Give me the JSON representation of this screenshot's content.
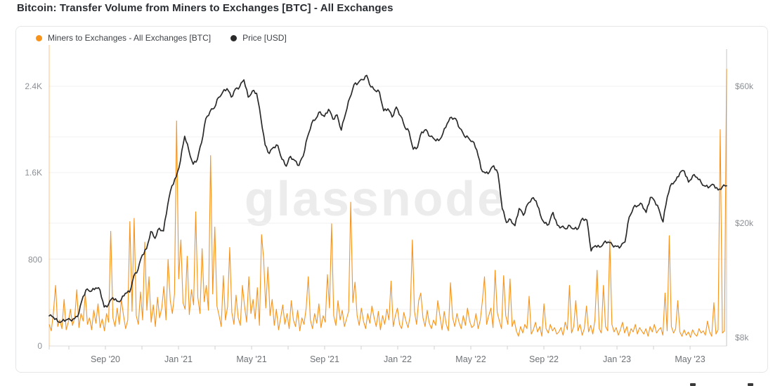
{
  "header": {
    "title": "Bitcoin: Transfer Volume from Miners to Exchanges [BTC] - All Exchanges"
  },
  "watermark": "glassnode",
  "legend": {
    "items": [
      {
        "label": "Miners to Exchanges - All Exchanges [BTC]",
        "color": "#f7931a"
      },
      {
        "label": "Price [USD]",
        "color": "#2a2a2a"
      }
    ]
  },
  "chart_data": {
    "type": "line",
    "title": "Bitcoin: Transfer Volume from Miners to Exchanges [BTC] - All Exchanges",
    "grid": "horizontal-faint",
    "legend_position": "top-left",
    "x_axis": {
      "ticks": [
        {
          "label": "Sep '20",
          "pos": 0.083
        },
        {
          "label": "Jan '21",
          "pos": 0.1909
        },
        {
          "label": "May '21",
          "pos": 0.2988
        },
        {
          "label": "Sep '21",
          "pos": 0.4066
        },
        {
          "label": "Jan '22",
          "pos": 0.5145
        },
        {
          "label": "May '22",
          "pos": 0.6224
        },
        {
          "label": "Sep '22",
          "pos": 0.7303
        },
        {
          "label": "Jan '23",
          "pos": 0.8382
        },
        {
          "label": "May '23",
          "pos": 0.9461
        }
      ]
    },
    "left_axis": {
      "unit": "BTC",
      "range": [
        0,
        2750
      ],
      "ticks": [
        {
          "label": "0",
          "value": 0
        },
        {
          "label": "800",
          "value": 800
        },
        {
          "label": "1.6K",
          "value": 1600
        },
        {
          "label": "2.4K",
          "value": 2400
        }
      ]
    },
    "right_axis": {
      "unit": "USD (thousands)",
      "scale": "log",
      "ticks": [
        {
          "label": "$60k",
          "value": 60
        },
        {
          "label": "$20k",
          "value": 20
        },
        {
          "label": "$8k",
          "value": 8
        }
      ],
      "grid_values": [
        60,
        40,
        30,
        20,
        15,
        10
      ]
    },
    "series": [
      {
        "name": "Miners to Exchanges - All Exchanges [BTC]",
        "axis": "left",
        "color": "#f7931a",
        "unit": "BTC",
        "values": [
          200,
          140,
          310,
          560,
          180,
          240,
          160,
          430,
          150,
          220,
          340,
          190,
          260,
          520,
          170,
          300,
          230,
          480,
          200,
          260,
          150,
          330,
          210,
          390,
          170,
          250,
          140,
          300,
          220,
          1060,
          260,
          180,
          350,
          200,
          430,
          280,
          160,
          240,
          1150,
          320,
          1180,
          280,
          200,
          500,
          240,
          960,
          330,
          640,
          220,
          380,
          180,
          450,
          260,
          350,
          550,
          240,
          800,
          420,
          300,
          480,
          2080,
          620,
          980,
          400,
          340,
          830,
          290,
          520,
          380,
          1240,
          450,
          300,
          900,
          410,
          560,
          330,
          1760,
          480,
          1100,
          370,
          280,
          180,
          650,
          240,
          360,
          910,
          310,
          200,
          470,
          260,
          190,
          560,
          370,
          220,
          640,
          300,
          430,
          250,
          540,
          190,
          1030,
          800,
          350,
          730,
          280,
          430,
          190,
          340,
          150,
          260,
          380,
          200,
          300,
          160,
          420,
          240,
          180,
          330,
          140,
          260,
          200,
          350,
          640,
          240,
          160,
          300,
          210,
          390,
          170,
          280,
          220,
          660,
          350,
          1130,
          280,
          190,
          420,
          240,
          330,
          180,
          250,
          320,
          1330,
          400,
          590,
          280,
          190,
          350,
          230,
          160,
          300,
          210,
          370,
          260,
          180,
          320,
          150,
          280,
          200,
          340,
          240,
          600,
          180,
          280,
          350,
          200,
          160,
          310,
          230,
          170,
          280,
          980,
          320,
          200,
          420,
          490,
          260,
          180,
          330,
          210,
          160,
          240,
          190,
          420,
          280,
          150,
          320,
          200,
          140,
          585,
          260,
          180,
          300,
          220,
          160,
          280,
          190,
          350,
          230,
          170,
          190,
          300,
          160,
          240,
          420,
          640,
          200,
          280,
          350,
          170,
          700,
          310,
          230,
          160,
          650,
          280,
          200,
          620,
          180,
          240,
          140,
          90,
          180,
          120,
          200,
          160,
          460,
          110,
          150,
          220,
          130,
          180,
          90,
          390,
          160,
          120,
          200,
          140,
          170,
          110,
          130,
          170,
          100,
          220,
          150,
          560,
          120,
          180,
          420,
          140,
          200,
          100,
          160,
          370,
          130,
          190,
          110,
          240,
          700,
          160,
          120,
          560,
          180,
          140,
          980,
          200,
          130,
          170,
          100,
          150,
          220,
          120,
          180,
          90,
          160,
          130,
          200,
          110,
          170,
          140,
          110,
          160,
          90,
          180,
          130,
          200,
          120,
          150,
          170,
          100,
          490,
          140,
          1020,
          180,
          120,
          160,
          420,
          130,
          90,
          150,
          100,
          130,
          80,
          150,
          110,
          90,
          160,
          120,
          140,
          100,
          230,
          130,
          90,
          400,
          110,
          150,
          2000,
          120,
          140,
          2560
        ]
      },
      {
        "name": "Price [USD]",
        "axis": "right",
        "color": "#2a2a2a",
        "unit": "USD (thousands)",
        "values": [
          9.5,
          9.4,
          9.1,
          9.1,
          9.2,
          9.2,
          9.3,
          9.7,
          11.1,
          11.8,
          11.6,
          11.9,
          11.7,
          10.2,
          10.4,
          11.0,
          10.7,
          10.8,
          11.4,
          11.5,
          13.1,
          13.8,
          15.5,
          16.3,
          18.7,
          17.7,
          19.2,
          18.8,
          23.2,
          27.0,
          29.0,
          33.0,
          40.2,
          35.8,
          32.1,
          33.4,
          38.2,
          46.3,
          49.0,
          50.4,
          54.9,
          57.3,
          58.9,
          55.0,
          58.8,
          59.8,
          63.2,
          55.0,
          57.8,
          56.7,
          46.4,
          37.5,
          35.0,
          36.8,
          37.3,
          33.4,
          31.6,
          34.2,
          33.1,
          31.8,
          34.3,
          39.9,
          44.6,
          46.3,
          48.9,
          47.1,
          49.9,
          46.1,
          47.7,
          42.2,
          48.2,
          54.7,
          60.9,
          61.7,
          63.3,
          65.5,
          59.7,
          58.0,
          57.3,
          49.3,
          50.1,
          46.9,
          50.8,
          47.3,
          43.2,
          41.7,
          36.2,
          36.8,
          41.6,
          42.4,
          40.1,
          39.2,
          38.8,
          41.1,
          44.5,
          46.8,
          46.3,
          42.8,
          40.4,
          39.7,
          38.6,
          36.0,
          31.0,
          29.9,
          30.2,
          31.7,
          29.8,
          22.5,
          20.1,
          20.6,
          19.6,
          22.5,
          21.3,
          23.3,
          24.4,
          23.9,
          21.4,
          20.0,
          19.8,
          21.8,
          19.7,
          19.4,
          19.1,
          19.6,
          19.1,
          19.2,
          20.8,
          20.5,
          16.0,
          16.7,
          16.5,
          17.1,
          17.2,
          16.8,
          16.6,
          16.6,
          17.2,
          21.0,
          22.7,
          23.0,
          23.3,
          21.8,
          24.6,
          23.9,
          22.4,
          20.2,
          24.7,
          27.5,
          28.2,
          30.0,
          30.4,
          27.8,
          29.3,
          28.9,
          27.7,
          26.9,
          26.8,
          27.2,
          26.1,
          26.8,
          27.0
        ]
      }
    ]
  }
}
